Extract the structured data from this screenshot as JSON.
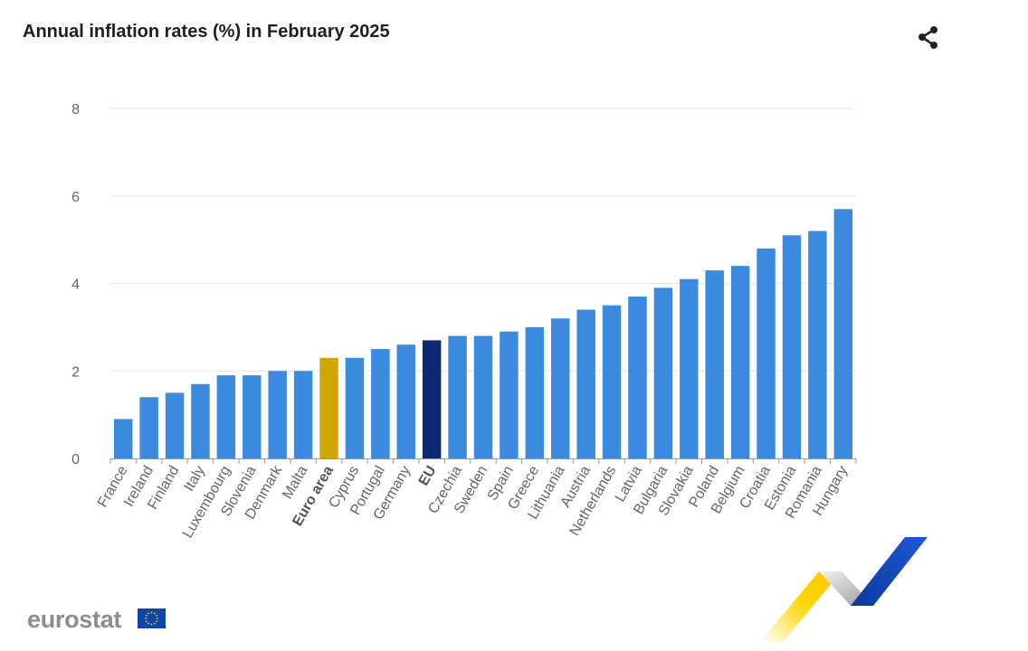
{
  "header": {
    "title": "Annual inflation rates (%) in February 2025"
  },
  "share": {
    "icon": "share-icon"
  },
  "brand": {
    "logo_text": "eurostat",
    "flag_icon": "eu-flag-icon"
  },
  "colors": {
    "bar": "#3b8ae0",
    "euro_area": "#d1a600",
    "eu": "#0c2a73",
    "grid": "#e6e6e6"
  },
  "chart_data": {
    "type": "bar",
    "title": "Annual inflation rates (%) in February 2025",
    "xlabel": "",
    "ylabel": "",
    "ylim": [
      0,
      8
    ],
    "yticks": [
      0,
      2,
      4,
      6,
      8
    ],
    "grid": true,
    "categories": [
      "France",
      "Ireland",
      "Finland",
      "Italy",
      "Luxembourg",
      "Slovenia",
      "Denmark",
      "Malta",
      "Euro area",
      "Cyprus",
      "Portugal",
      "Germany",
      "EU",
      "Czechia",
      "Sweden",
      "Spain",
      "Greece",
      "Lithuania",
      "Austria",
      "Netherlands",
      "Latvia",
      "Bulgaria",
      "Slovakia",
      "Poland",
      "Belgium",
      "Croatia",
      "Estonia",
      "Romania",
      "Hungary"
    ],
    "values": [
      0.9,
      1.4,
      1.5,
      1.7,
      1.9,
      1.9,
      2.0,
      2.0,
      2.3,
      2.3,
      2.5,
      2.6,
      2.7,
      2.8,
      2.8,
      2.9,
      3.0,
      3.2,
      3.4,
      3.5,
      3.7,
      3.9,
      4.1,
      4.3,
      4.4,
      4.8,
      5.1,
      5.2,
      5.7
    ],
    "highlight": {
      "Euro area": "euro_area",
      "EU": "eu"
    },
    "bold_labels": [
      "Euro area",
      "EU"
    ]
  }
}
